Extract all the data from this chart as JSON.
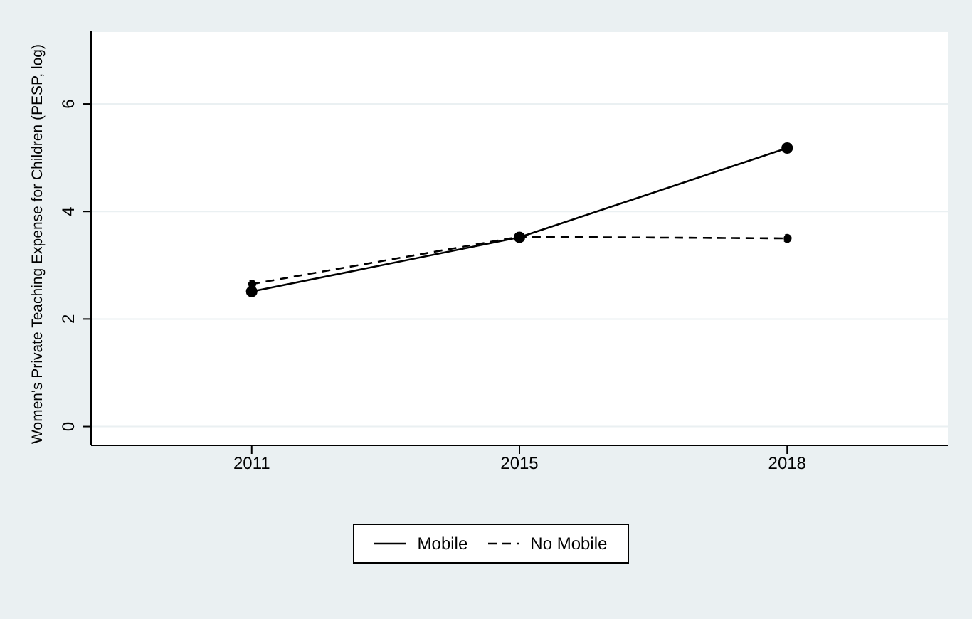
{
  "chart_data": {
    "type": "line",
    "ylabel": "Women's Private Teaching Expense for Children (PESP, log)",
    "categories": [
      "2011",
      "2015",
      "2018"
    ],
    "series": [
      {
        "name": "Mobile",
        "color": "#000000",
        "values": [
          2.51,
          3.52,
          5.18
        ],
        "line_style": "solid"
      },
      {
        "name": "No Mobile",
        "color": "#000000",
        "values": [
          2.65,
          3.53,
          3.5
        ],
        "line_style": "dashed"
      }
    ],
    "ylim": [
      -0.35,
      7.35
    ],
    "yticks": [
      0,
      2,
      4,
      6
    ],
    "grid": "y",
    "legend": "bottom",
    "marker": "circle"
  }
}
